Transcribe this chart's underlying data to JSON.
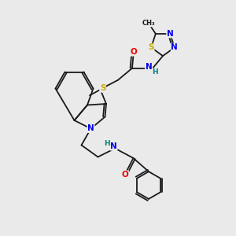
{
  "background_color": "#eaeaea",
  "bond_color": "#1a1a1a",
  "atom_colors": {
    "N": "#0000ee",
    "S": "#ccaa00",
    "O": "#ee0000",
    "H": "#008080",
    "C": "#1a1a1a"
  },
  "lw": 1.3,
  "fs": 7.0
}
